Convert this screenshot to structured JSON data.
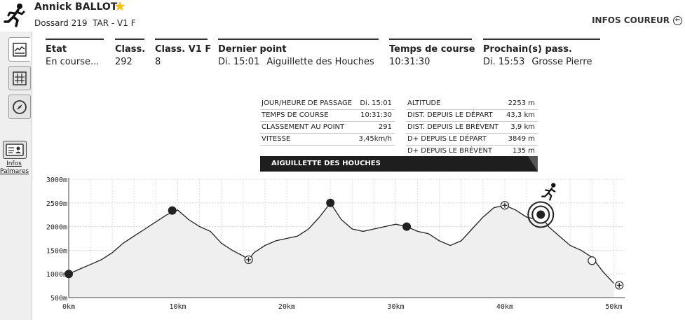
{
  "header": {
    "name": "Annick BALLOT",
    "dossard": "Dossard 219",
    "category": "TAR - V1 F",
    "infos_coureur": "INFOS COUREUR"
  },
  "sidebar": {
    "tabs": [
      {
        "icon": "profile-chart-icon"
      },
      {
        "icon": "grid-table-icon"
      },
      {
        "icon": "compass-icon"
      }
    ],
    "infos_link_line1": "Infos",
    "infos_link_line2": "Palmares"
  },
  "stats": [
    {
      "label": "Etat",
      "value": "En course..."
    },
    {
      "label": "Class.",
      "value": "292"
    },
    {
      "label": "Class. V1 F",
      "value": "8"
    },
    {
      "label": "Dernier point",
      "value_time": "Di. 15:01",
      "value_place": "Aiguillette des Houches"
    },
    {
      "label": "Temps de course",
      "value": "10:31:30"
    },
    {
      "label": "Prochain(s) pass.",
      "value_time": "Di. 15:53",
      "value_place": "Grosse Pierre"
    }
  ],
  "info_left": [
    {
      "label": "JOUR/HEURE DE PASSAGE",
      "value": "Di. 15:01"
    },
    {
      "label": "TEMPS DE COURSE",
      "value": "10:31:30"
    },
    {
      "label": "CLASSEMENT AU POINT",
      "value": "291"
    },
    {
      "label": "VITESSE",
      "value": "3,45km/h"
    }
  ],
  "info_right": [
    {
      "label": "ALTITUDE",
      "value": "2253 m"
    },
    {
      "label": "DIST. DEPUIS LE DÉPART",
      "value": "43,3 km"
    },
    {
      "label": "DIST. DEPUIS LE BRÉVENT",
      "value": "3,9 km"
    },
    {
      "label": "D+ DEPUIS LE DÉPART",
      "value": "3849 m"
    },
    {
      "label": "D+ DEPUIS LE BRÉVENT",
      "value": "135 m"
    }
  ],
  "banner": "AIGUILLETTE DES HOUCHES",
  "chart_data": {
    "type": "area",
    "xlim": [
      0,
      51
    ],
    "ylim": [
      500,
      3000
    ],
    "x_ticks": [
      "0km",
      "10km",
      "20km",
      "30km",
      "40km",
      "50km"
    ],
    "x_tick_values": [
      0,
      10,
      20,
      30,
      40,
      50
    ],
    "y_ticks": [
      "500m",
      "1000m",
      "1500m",
      "2000m",
      "2500m",
      "3000m"
    ],
    "y_tick_values": [
      500,
      1000,
      1500,
      2000,
      2500,
      3000
    ],
    "grid": true,
    "series": [
      {
        "x": [
          0,
          1,
          2,
          3,
          4,
          5,
          6,
          7,
          8,
          9,
          9.5,
          10,
          11,
          12,
          13,
          14,
          15,
          16,
          16.5,
          17,
          18,
          19,
          20,
          21,
          22,
          23,
          24,
          25,
          26,
          27,
          28,
          29,
          30,
          31,
          32,
          33,
          34,
          35,
          36,
          37,
          38,
          39,
          40,
          41,
          42,
          43,
          43.3,
          44,
          45,
          46,
          47,
          48,
          49,
          50
        ],
        "y": [
          1000,
          1100,
          1200,
          1300,
          1450,
          1650,
          1800,
          1950,
          2100,
          2250,
          2300,
          2350,
          2150,
          2000,
          1900,
          1650,
          1500,
          1380,
          1300,
          1450,
          1600,
          1700,
          1750,
          1800,
          1950,
          2200,
          2500,
          2150,
          1950,
          1900,
          1950,
          2000,
          2050,
          2000,
          1900,
          1850,
          1700,
          1600,
          1700,
          1950,
          2200,
          2400,
          2450,
          2350,
          2200,
          2150,
          2253,
          2000,
          1800,
          1600,
          1500,
          1350,
          1050,
          800
        ]
      }
    ],
    "markers": [
      {
        "x": 0,
        "y": 1000,
        "kind": "filled"
      },
      {
        "x": 9.5,
        "y": 2340,
        "kind": "filled"
      },
      {
        "x": 16.5,
        "y": 1300,
        "kind": "cross"
      },
      {
        "x": 24,
        "y": 2500,
        "kind": "filled"
      },
      {
        "x": 31,
        "y": 2000,
        "kind": "filled"
      },
      {
        "x": 40,
        "y": 2450,
        "kind": "cross"
      },
      {
        "x": 43.3,
        "y": 2253,
        "kind": "current"
      },
      {
        "x": 48,
        "y": 1280,
        "kind": "open"
      },
      {
        "x": 50.5,
        "y": 760,
        "kind": "cross"
      }
    ]
  }
}
